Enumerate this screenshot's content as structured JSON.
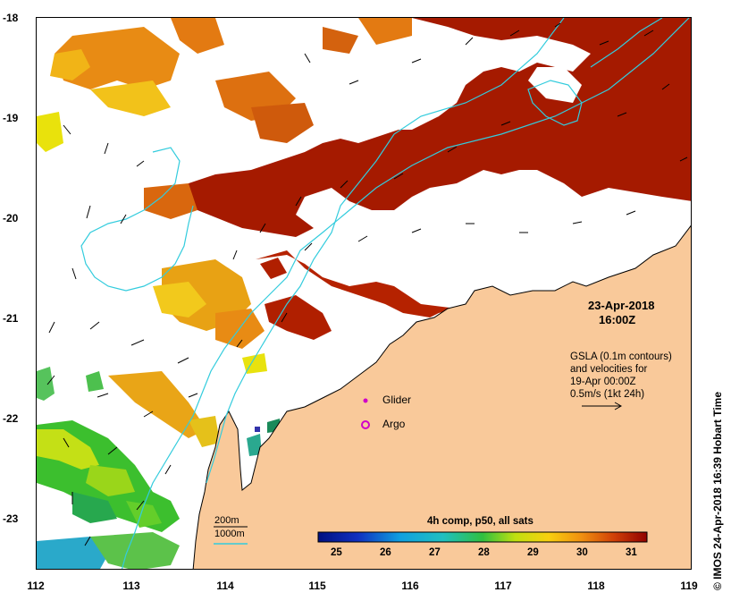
{
  "map": {
    "date": "23-Apr-2018",
    "time": "16:00Z",
    "copyright": "© IMOS 24-Apr-2018 16:39 Hobart Time",
    "x_ticks": [
      "112",
      "113",
      "114",
      "115",
      "116",
      "117",
      "118",
      "119"
    ],
    "y_ticks": [
      "-18",
      "-19",
      "-20",
      "-21",
      "-22",
      "-23"
    ],
    "gsla_lines": [
      "GSLA (0.1m contours)",
      "and velocities for",
      "19-Apr 00:00Z",
      "0.5m/s (1kt 24h)"
    ],
    "legend": {
      "glider": "Glider",
      "argo": "Argo"
    },
    "contours": {
      "c200": "200m",
      "c1000": "1000m"
    },
    "colorbar": {
      "title": "4h comp, p50, all sats",
      "labels": [
        "25",
        "26",
        "27",
        "28",
        "29",
        "30",
        "31"
      ]
    },
    "colors": {
      "land": "#f9c99a",
      "contour": "#33ccdd",
      "glider": "#d000c8"
    }
  }
}
